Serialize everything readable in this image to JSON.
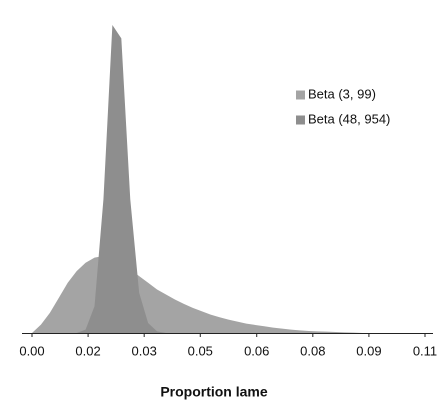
{
  "chart_data": {
    "type": "area",
    "x_label": "Proportion lame",
    "x": [
      0,
      0.0025,
      0.005,
      0.0075,
      0.01,
      0.0125,
      0.015,
      0.0175,
      0.02,
      0.0225,
      0.025,
      0.0275,
      0.03,
      0.0325,
      0.035,
      0.0375,
      0.04,
      0.0425,
      0.045,
      0.0475,
      0.05,
      0.0525,
      0.055,
      0.0575,
      0.06,
      0.0625,
      0.065,
      0.0675,
      0.07,
      0.0725,
      0.075,
      0.0775,
      0.08,
      0.0825,
      0.085,
      0.0875,
      0.09,
      0.0925,
      0.095,
      0.0975,
      0.1,
      0.1025,
      0.105,
      0.1075,
      0.11
    ],
    "series": [
      {
        "name": "Beta (3, 99)",
        "color": "#a4a4a4",
        "values": [
          0,
          2.5,
          6,
          10.5,
          15,
          18.5,
          21,
          22.5,
          23,
          22.5,
          21,
          19,
          17,
          15,
          13,
          11.5,
          10,
          8.7,
          7.5,
          6.5,
          5.5,
          4.7,
          4,
          3.4,
          2.8,
          2.4,
          2,
          1.6,
          1.3,
          1,
          0.8,
          0.6,
          0.5,
          0.4,
          0.3,
          0.2,
          0.1,
          0,
          0,
          0,
          0,
          0,
          0,
          0,
          0
        ]
      },
      {
        "name": "Beta (48, 954)",
        "color": "#8e8e8e",
        "values": [
          0,
          0,
          0,
          0,
          0,
          0,
          1,
          8,
          40,
          92,
          88,
          40,
          12,
          3,
          0.5,
          0,
          0,
          0,
          0,
          0,
          0,
          0,
          0,
          0,
          0,
          0,
          0,
          0,
          0,
          0,
          0,
          0,
          0,
          0,
          0,
          0,
          0,
          0,
          0,
          0,
          0,
          0,
          0,
          0,
          0
        ]
      }
    ],
    "xlim": [
      0,
      0.11
    ],
    "xticks": [
      {
        "value": 0,
        "label": "0.00"
      },
      {
        "value": 0.0157,
        "label": "0.02"
      },
      {
        "value": 0.0314,
        "label": "0.03"
      },
      {
        "value": 0.0471,
        "label": "0.05"
      },
      {
        "value": 0.0629,
        "label": "0.06"
      },
      {
        "value": 0.0786,
        "label": "0.08"
      },
      {
        "value": 0.0943,
        "label": "0.09"
      },
      {
        "value": 0.11,
        "label": "0.11"
      }
    ],
    "ylim": [
      0,
      95
    ],
    "legend": "upper-right"
  }
}
